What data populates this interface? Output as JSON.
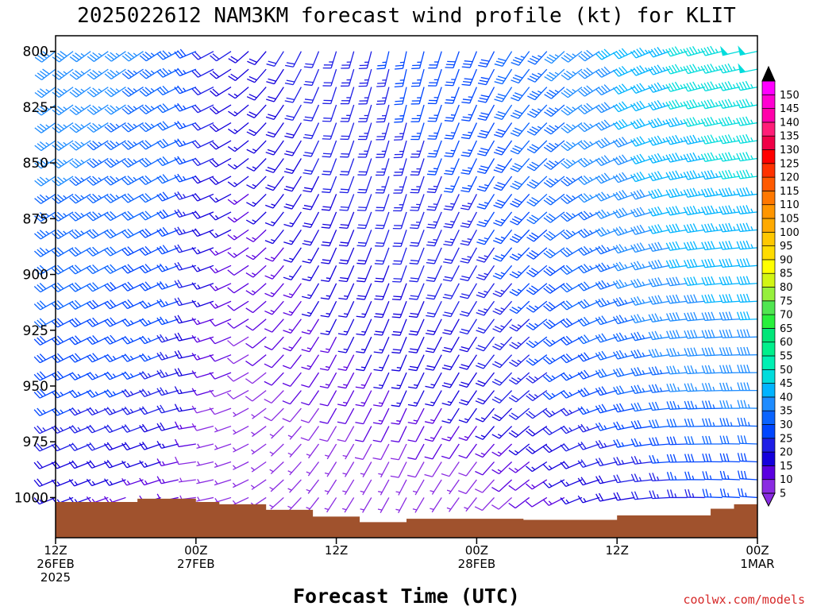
{
  "chart_data": {
    "type": "wind-barb time-height profile",
    "title": "2025022612 NAM3KM forecast wind profile (kt) for KLIT",
    "xlabel": "Forecast Time (UTC)",
    "ylabel": "",
    "y_axis": {
      "ticks": [
        800,
        825,
        850,
        875,
        900,
        925,
        950,
        975,
        1000
      ],
      "range_hPa": [
        793,
        1018
      ]
    },
    "x_axis": {
      "range_hours": [
        0,
        60
      ],
      "ticks": [
        {
          "hour": 0,
          "lines": [
            "12Z",
            "26FEB",
            "2025"
          ]
        },
        {
          "hour": 12,
          "lines": [
            "00Z",
            "27FEB"
          ]
        },
        {
          "hour": 24,
          "lines": [
            "12Z"
          ]
        },
        {
          "hour": 36,
          "lines": [
            "00Z",
            "28FEB"
          ]
        },
        {
          "hour": 48,
          "lines": [
            "12Z"
          ]
        },
        {
          "hour": 60,
          "lines": [
            "00Z",
            "1MAR"
          ]
        }
      ]
    },
    "colorbar": {
      "unit": "kt",
      "levels": [
        5,
        10,
        15,
        20,
        25,
        30,
        35,
        40,
        45,
        50,
        55,
        60,
        65,
        70,
        75,
        80,
        85,
        90,
        95,
        100,
        105,
        110,
        115,
        120,
        125,
        130,
        135,
        140,
        145,
        150
      ],
      "colors": [
        "#8a2be2",
        "#5a00e0",
        "#1400dc",
        "#1e1ee6",
        "#0046ff",
        "#0a64ff",
        "#1e8cff",
        "#00b4ff",
        "#00dcdc",
        "#00f0b4",
        "#00f08c",
        "#00e678",
        "#28f03c",
        "#50e650",
        "#96f03c",
        "#d2f514",
        "#ffff00",
        "#ffdc00",
        "#ffc800",
        "#ffaa00",
        "#ff9600",
        "#ff7800",
        "#ff5a00",
        "#ff3200",
        "#ff0000",
        "#f00046",
        "#ff1e78",
        "#ff00aa",
        "#ff00d2",
        "#ff00ff"
      ]
    },
    "terrain_color": "#a0522d",
    "surface_pressure_series": {
      "hours": [
        0,
        4,
        7,
        12,
        14,
        18,
        22,
        26,
        30,
        34,
        40,
        44,
        48,
        52,
        56,
        58,
        60
      ],
      "values": [
        1002,
        1002,
        1000.5,
        1002,
        1003,
        1005.5,
        1008.5,
        1011,
        1009.5,
        1009.5,
        1010,
        1010,
        1008,
        1008,
        1005,
        1003,
        1001
      ]
    },
    "wind_time_axis": {
      "hours": [
        0,
        1.5,
        3,
        4.5,
        6,
        7.5,
        9,
        10.5,
        12,
        13.5,
        15,
        16.5,
        18,
        19.5,
        21,
        22.5,
        24,
        25.5,
        27,
        28.5,
        30,
        31.5,
        33,
        34.5,
        36,
        37.5,
        39,
        40.5,
        42,
        43.5,
        45,
        46.5,
        48,
        49.5,
        51,
        52.5,
        54,
        55.5,
        57,
        58.5,
        60
      ],
      "dir_keyframes_deg": {
        "hours": [
          0,
          9,
          12,
          15,
          19.5,
          24,
          30,
          36,
          42,
          48,
          54,
          60
        ],
        "values": [
          240,
          245,
          255,
          245,
          220,
          205,
          200,
          210,
          230,
          250,
          262,
          266
        ]
      },
      "speed_keyframes_kt": {
        "hours": [
          0,
          6,
          10.5,
          13.5,
          16.5,
          22.5,
          30,
          36,
          42,
          48,
          54,
          60
        ],
        "values": [
          30,
          28,
          25,
          14,
          10,
          14,
          18,
          20,
          26,
          32,
          38,
          40
        ]
      }
    },
    "wind_levels_hPa": [
      800,
      808,
      816,
      824,
      832,
      840,
      848,
      856,
      864,
      872,
      880,
      888,
      896,
      904,
      912,
      920,
      928,
      936,
      944,
      952,
      960,
      968,
      976,
      984,
      992,
      1000
    ],
    "level_speed_adjust_kt": {
      "hPa": [
        800,
        850,
        900,
        950,
        975,
        1000
      ],
      "values": [
        8,
        6,
        2,
        -2,
        -8,
        -14
      ]
    },
    "credit": "coolwx.com/models"
  }
}
